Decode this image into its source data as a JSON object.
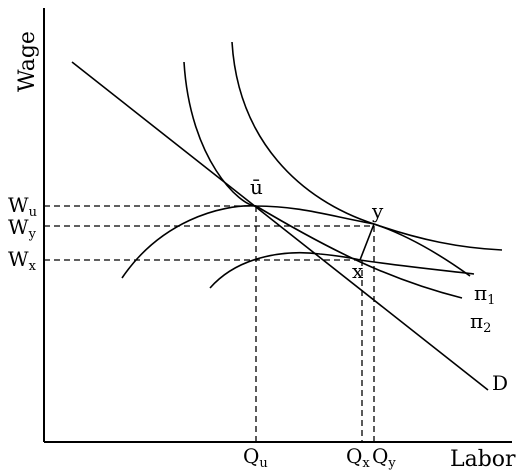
{
  "axes": {
    "y_label": "Wage",
    "x_label": "Labor"
  },
  "wage_ticks": [
    {
      "id": "wu",
      "base": "W",
      "sub": "u"
    },
    {
      "id": "wy",
      "base": "W",
      "sub": "y"
    },
    {
      "id": "wx",
      "base": "W",
      "sub": "x"
    }
  ],
  "labor_ticks": [
    {
      "id": "qu",
      "base": "Q",
      "sub": "u"
    },
    {
      "id": "qx",
      "base": "Q",
      "sub": "x"
    },
    {
      "id": "qy",
      "base": "Q",
      "sub": "y"
    }
  ],
  "points": {
    "u_bar": "ū",
    "x": "x",
    "y": "y"
  },
  "curve_labels": {
    "pi1_base": "π",
    "pi1_sub": "1",
    "pi2_base": "π",
    "pi2_sub": "2",
    "demand": "D"
  }
}
